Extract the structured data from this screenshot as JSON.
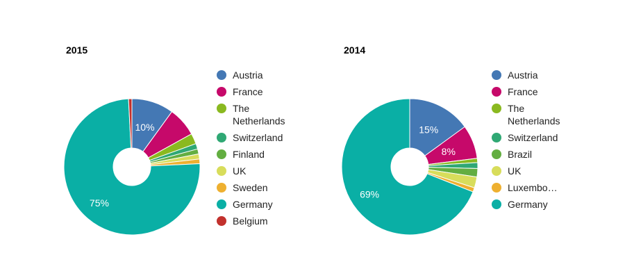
{
  "chart_data": [
    {
      "type": "pie",
      "title": "2015",
      "slices": [
        {
          "label": "Austria",
          "value": 10,
          "color": "#4478b4",
          "display": "10%"
        },
        {
          "label": "France",
          "value": 7,
          "color": "#c6096a",
          "display": ""
        },
        {
          "label": "The Netherlands",
          "value": 2.5,
          "color": "#8ab920",
          "display": ""
        },
        {
          "label": "Switzerland",
          "value": 1.3,
          "color": "#2fa874",
          "display": ""
        },
        {
          "label": "Finland",
          "value": 1.2,
          "color": "#63ae41",
          "display": ""
        },
        {
          "label": "UK",
          "value": 1.2,
          "color": "#d8dd5b",
          "display": ""
        },
        {
          "label": "Sweden",
          "value": 1.1,
          "color": "#eeb030",
          "display": ""
        },
        {
          "label": "Germany",
          "value": 75,
          "color": "#0aafa5",
          "display": "75%"
        },
        {
          "label": "Belgium",
          "value": 0.8,
          "color": "#c2312d",
          "display": ""
        }
      ]
    },
    {
      "type": "pie",
      "title": "2014",
      "slices": [
        {
          "label": "Austria",
          "value": 15,
          "color": "#4478b4",
          "display": "15%"
        },
        {
          "label": "France",
          "value": 8,
          "color": "#c6096a",
          "display": "8%"
        },
        {
          "label": "The Netherlands",
          "value": 1,
          "color": "#8ab920",
          "display": ""
        },
        {
          "label": "Switzerland",
          "value": 1.4,
          "color": "#2fa874",
          "display": ""
        },
        {
          "label": "Brazil",
          "value": 2,
          "color": "#63ae41",
          "display": ""
        },
        {
          "label": "UK",
          "value": 2.6,
          "color": "#d8dd5b",
          "display": ""
        },
        {
          "label": "Luxembo…",
          "value": 1,
          "color": "#eeb030",
          "display": ""
        },
        {
          "label": "Germany",
          "value": 69,
          "color": "#0aafa5",
          "display": "69%"
        }
      ]
    }
  ]
}
